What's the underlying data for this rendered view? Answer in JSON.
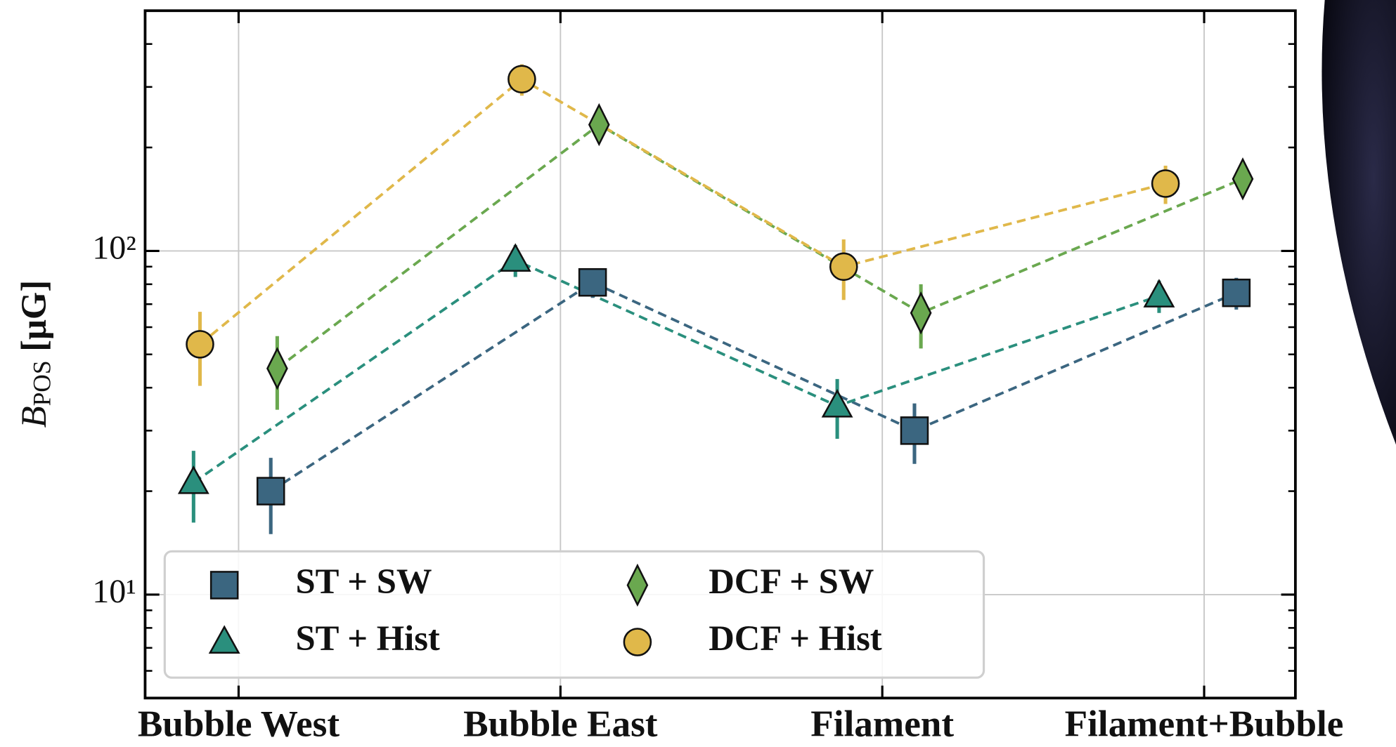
{
  "chart_data": {
    "type": "errorbar-line",
    "ylabel": "B",
    "ylabel_sub": "POS",
    "ylabel_unit": "[μG]",
    "categories": [
      "Bubble West",
      "Bubble East",
      "Filament",
      "Filament+Bubble"
    ],
    "log_y": true,
    "grid": true,
    "legend_loc": "lower left",
    "ylim": [
      5,
      500
    ],
    "yticks": [
      {
        "value": 10,
        "label": "10¹"
      },
      {
        "value": 100,
        "label": "10²"
      }
    ],
    "minor_yticks": [
      6,
      7,
      8,
      9,
      20,
      30,
      40,
      50,
      60,
      70,
      80,
      90,
      200,
      300,
      400
    ],
    "series": [
      {
        "name": "ST + SW",
        "color": "#3b6680",
        "marker": "square",
        "values": [
          20,
          81,
          30,
          75.5
        ],
        "errors": [
          5,
          8,
          6,
          8
        ]
      },
      {
        "name": "ST + Hist",
        "color": "#2a8f7d",
        "marker": "triangle",
        "values": [
          21.2,
          94,
          35.4,
          74
        ],
        "errors": [
          5,
          10,
          7,
          8
        ]
      },
      {
        "name": "DCF + SW",
        "color": "#6aa84f",
        "marker": "diamond",
        "values": [
          45.5,
          233,
          66,
          162
        ],
        "errors": [
          11,
          25,
          14,
          18
        ]
      },
      {
        "name": "DCF + Hist",
        "color": "#e0b84a",
        "marker": "circle",
        "values": [
          53.5,
          316,
          90,
          157
        ],
        "errors": [
          13,
          33,
          18,
          20
        ]
      }
    ]
  }
}
